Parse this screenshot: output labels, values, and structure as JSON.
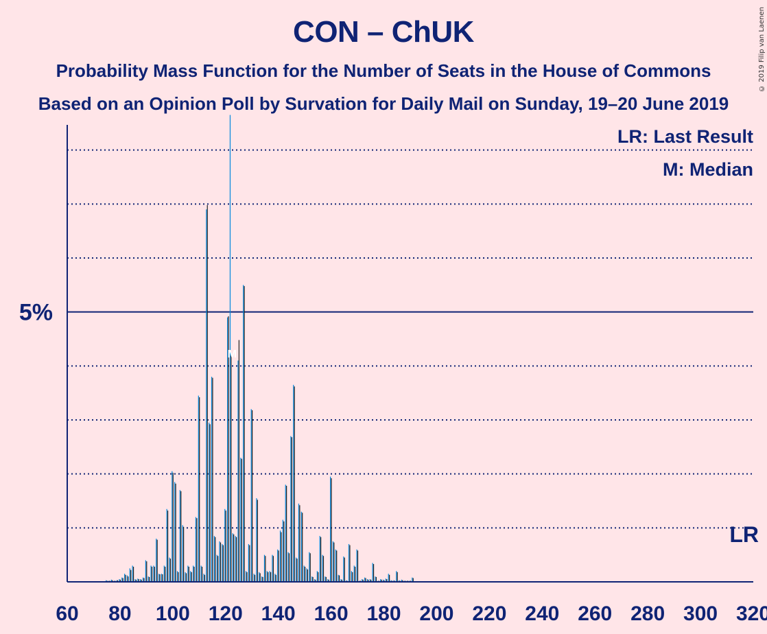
{
  "title": "CON – ChUK",
  "subtitle": "Probability Mass Function for the Number of Seats in the House of Commons",
  "subtitle2": "Based on an Opinion Poll by Survation for Daily Mail on Sunday, 19–20 June 2019",
  "legend": {
    "last_result": "LR: Last Result",
    "median": "M: Median"
  },
  "copyright": "© 2019 Filip van Laenen",
  "colors": {
    "background": "#ffe5e8",
    "axis": "#0f2374",
    "bar_con": "#0087dc",
    "bar_chuk": "#222222"
  },
  "chart_data": {
    "type": "bar",
    "xlim": [
      60,
      320
    ],
    "ylim": [
      0,
      0.09
    ],
    "x_ticks": [
      60,
      80,
      100,
      120,
      140,
      160,
      180,
      200,
      220,
      240,
      260,
      280,
      300,
      320
    ],
    "y_tick_label": "5%",
    "y_tick_value": 0.05,
    "gridlines": [
      0.01,
      0.02,
      0.03,
      0.04,
      0.06,
      0.07,
      0.08
    ],
    "median_seat": 122,
    "median_label": "M",
    "last_result_seat": 318,
    "last_result_label": "LR",
    "x": [
      75,
      76,
      77,
      78,
      79,
      80,
      81,
      82,
      83,
      84,
      85,
      86,
      87,
      88,
      89,
      90,
      91,
      92,
      93,
      94,
      95,
      96,
      97,
      98,
      99,
      100,
      101,
      102,
      103,
      104,
      105,
      106,
      107,
      108,
      109,
      110,
      111,
      112,
      113,
      114,
      115,
      116,
      117,
      118,
      119,
      120,
      121,
      122,
      123,
      124,
      125,
      126,
      127,
      128,
      129,
      130,
      131,
      132,
      133,
      134,
      135,
      136,
      137,
      138,
      139,
      140,
      141,
      142,
      143,
      144,
      145,
      146,
      147,
      148,
      149,
      150,
      151,
      152,
      153,
      154,
      155,
      156,
      157,
      158,
      159,
      160,
      161,
      162,
      163,
      164,
      165,
      166,
      167,
      168,
      169,
      170,
      171,
      172,
      173,
      174,
      175,
      176,
      177,
      178,
      179,
      180,
      181,
      182,
      183,
      184,
      185,
      186,
      187,
      188,
      189,
      190,
      191
    ],
    "series": [
      {
        "values": [
          0.0003,
          0.0002,
          0.0004,
          0.0002,
          0.0003,
          0.0005,
          0.0008,
          0.0015,
          0.0012,
          0.0025,
          0.003,
          0.0005,
          0.0006,
          0.0005,
          0.0008,
          0.004,
          0.001,
          0.003,
          0.003,
          0.008,
          0.0015,
          0.0015,
          0.003,
          0.0135,
          0.0045,
          0.0205,
          0.0185,
          0.002,
          0.017,
          0.0105,
          0.0018,
          0.003,
          0.002,
          0.003,
          0.012,
          0.0345,
          0.003,
          0.0015,
          0.069,
          0.0295,
          0.038,
          0.0085,
          0.005,
          0.0075,
          0.007,
          0.0135,
          0.049,
          0.0865,
          0.009,
          0.0085,
          0.041,
          0.023,
          0.055,
          0.002,
          0.007,
          0.032,
          0.0015,
          0.0155,
          0.0018,
          0.001,
          0.005,
          0.002,
          0.002,
          0.005,
          0.0015,
          0.006,
          0.0095,
          0.0115,
          0.018,
          0.0055,
          0.027,
          0.0365,
          0.0045,
          0.0145,
          0.013,
          0.003,
          0.0025,
          0.0055,
          0.001,
          0.0005,
          0.002,
          0.0085,
          0.005,
          0.001,
          0.0005,
          0.0195,
          0.0075,
          0.006,
          0.0013,
          0.0005,
          0.0047,
          0.0003,
          0.007,
          0.002,
          0.003,
          0.006,
          0.0002,
          0.0005,
          0.0008,
          0.0005,
          0.0005,
          0.0035,
          0.001,
          0.0002,
          0.0005,
          0.0004,
          0.0006,
          0.0015,
          0.0003,
          0.0003,
          0.002,
          0.0003,
          0.0004,
          0.0002,
          0.0002,
          0.0002,
          0.0008
        ]
      },
      {
        "values": [
          0.0002,
          0.0002,
          0.0003,
          0.0002,
          0.0003,
          0.0004,
          0.0007,
          0.0013,
          0.001,
          0.0022,
          0.0028,
          0.0004,
          0.0005,
          0.0004,
          0.0007,
          0.0038,
          0.0009,
          0.0028,
          0.0028,
          0.0078,
          0.0014,
          0.0014,
          0.0028,
          0.0132,
          0.0043,
          0.0202,
          0.0182,
          0.0018,
          0.0168,
          0.0102,
          0.0016,
          0.0028,
          0.0018,
          0.0028,
          0.0118,
          0.0342,
          0.0028,
          0.0013,
          0.0698,
          0.0292,
          0.0378,
          0.0083,
          0.0048,
          0.0073,
          0.0068,
          0.0132,
          0.0492,
          0.0423,
          0.0088,
          0.0083,
          0.0448,
          0.0228,
          0.0548,
          0.0018,
          0.0068,
          0.0318,
          0.0013,
          0.0152,
          0.0016,
          0.0009,
          0.0048,
          0.0018,
          0.0018,
          0.0048,
          0.0013,
          0.0058,
          0.0092,
          0.0112,
          0.0178,
          0.0053,
          0.0268,
          0.0362,
          0.0043,
          0.0142,
          0.0128,
          0.0028,
          0.0023,
          0.0053,
          0.0009,
          0.0004,
          0.0018,
          0.0083,
          0.0048,
          0.0009,
          0.0004,
          0.0192,
          0.0073,
          0.0058,
          0.0012,
          0.0004,
          0.0045,
          0.0002,
          0.0068,
          0.0018,
          0.0028,
          0.0058,
          0.0002,
          0.0004,
          0.0007,
          0.0004,
          0.0004,
          0.0033,
          0.0009,
          0.0002,
          0.0004,
          0.0003,
          0.0005,
          0.0013,
          0.0002,
          0.0002,
          0.0018,
          0.0002,
          0.0003,
          0.0002,
          0.0002,
          0.0002,
          0.0007
        ]
      }
    ]
  }
}
